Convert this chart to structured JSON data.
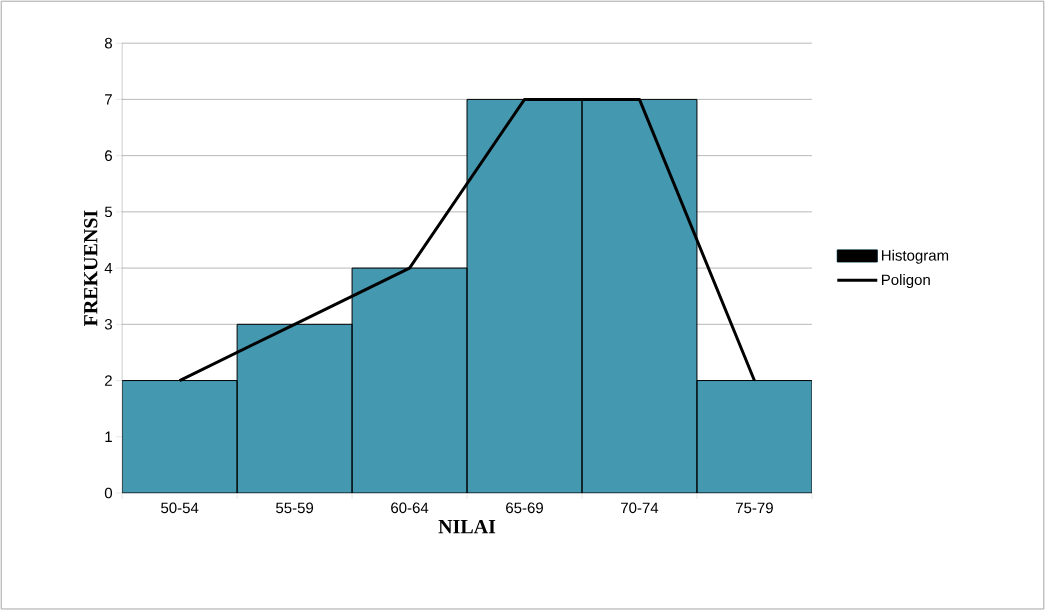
{
  "chart_data": {
    "type": "bar",
    "xlabel": "NILAI",
    "ylabel": "FREKUENSI",
    "categories": [
      "50-54",
      "55-59",
      "60-64",
      "65-69",
      "70-74",
      "75-79"
    ],
    "series": [
      {
        "name": "Histogram",
        "color": "#4499b1",
        "values": [
          2,
          3,
          4,
          7,
          7,
          2
        ]
      },
      {
        "name": "Poligon",
        "type": "line",
        "color": "#000000",
        "values": [
          2,
          3,
          4,
          7,
          7,
          2
        ]
      }
    ],
    "ylim": [
      0,
      8
    ],
    "yticks": [
      0,
      1,
      2,
      3,
      4,
      5,
      6,
      7,
      8
    ],
    "grid": "y",
    "legend": "right",
    "marker": "none",
    "line_style": "solid"
  }
}
